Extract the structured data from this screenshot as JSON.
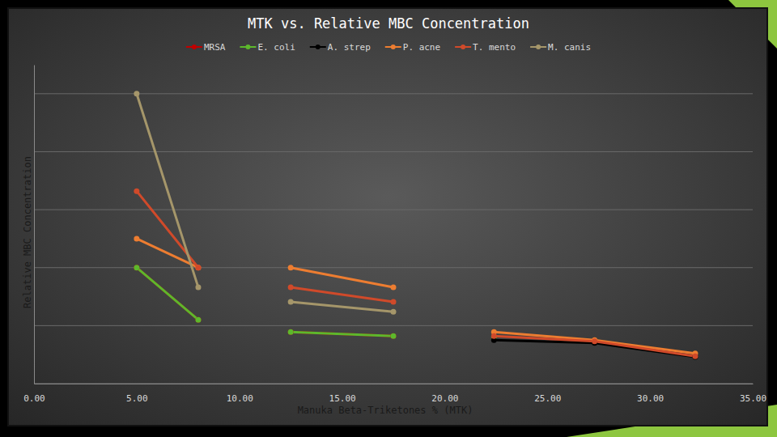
{
  "chart_data": {
    "type": "line",
    "title": "MTK vs. Relative MBC Concentration",
    "x_label": "Manuka Beta-Triketones % (MTK)",
    "y_label": "Relative MBC Concentration",
    "x": [
      5,
      8,
      null,
      12.5,
      17.5,
      null,
      22.4,
      27.3,
      32.2
    ],
    "series": [
      {
        "name": "MRSA",
        "color": "#c00000",
        "marker": "circle",
        "values": [
          2.0,
          1.1,
          null,
          0.89,
          0.82,
          null,
          null,
          null,
          null
        ]
      },
      {
        "name": "E. coli",
        "color": "#5cb82c",
        "marker": "circle",
        "values": [
          2.0,
          1.1,
          null,
          0.89,
          0.82,
          null,
          0.8,
          null,
          null
        ]
      },
      {
        "name": "A. strep",
        "color": "#000000",
        "marker": "circle",
        "values": [
          null,
          null,
          null,
          null,
          null,
          null,
          0.75,
          0.7,
          0.46
        ]
      },
      {
        "name": "P. acne",
        "color": "#ed7d31",
        "marker": "circle",
        "values": [
          2.5,
          2.0,
          null,
          2.0,
          1.66,
          null,
          0.89,
          0.75,
          0.52
        ]
      },
      {
        "name": "T. mento",
        "color": "#d04a2a",
        "marker": "circle",
        "values": [
          3.32,
          2.0,
          null,
          1.66,
          1.41,
          null,
          0.82,
          0.73,
          0.47
        ]
      },
      {
        "name": "M. canis",
        "color": "#a5966a",
        "marker": "circle",
        "values": [
          5.0,
          1.66,
          null,
          1.41,
          1.24,
          null,
          null,
          null,
          null
        ]
      }
    ],
    "xlim": [
      0,
      35
    ],
    "xticks": [
      {
        "value": 0,
        "label": "0.00"
      },
      {
        "value": 5,
        "label": "5.00"
      },
      {
        "value": 10,
        "label": "10.00"
      },
      {
        "value": 15,
        "label": "15.00"
      },
      {
        "value": 20,
        "label": "20.00"
      },
      {
        "value": 25,
        "label": "25.00"
      },
      {
        "value": 30,
        "label": "30.00"
      },
      {
        "value": 35,
        "label": "35.00"
      }
    ],
    "ylim": [
      0,
      5.5
    ],
    "yticks": [
      0,
      1,
      2,
      3,
      4,
      5
    ],
    "grid": true,
    "legend": "top",
    "tick_labels": "x"
  }
}
